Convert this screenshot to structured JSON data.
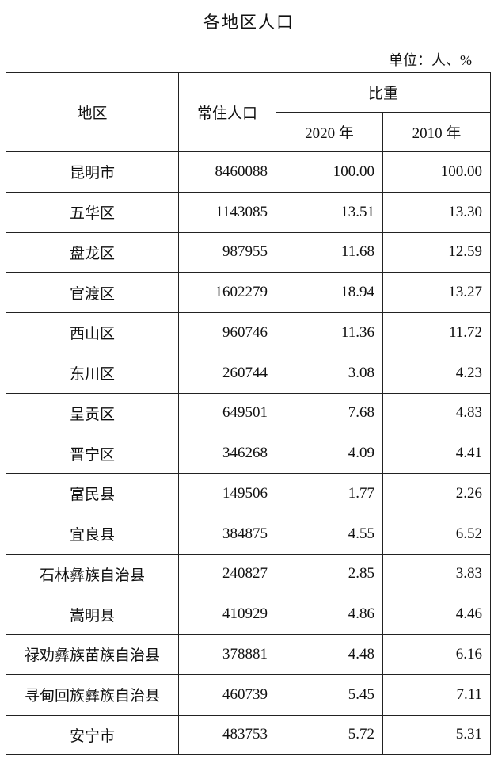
{
  "header": {
    "title": "各地区人口",
    "unit": "单位：人、%"
  },
  "table": {
    "columns": {
      "region": "地区",
      "population": "常住人口",
      "share": "比重",
      "year2020": "2020 年",
      "year2010": "2010 年"
    },
    "rows": [
      [
        "昆明市",
        "8460088",
        "100.00",
        "100.00"
      ],
      [
        "五华区",
        "1143085",
        "13.51",
        "13.30"
      ],
      [
        "盘龙区",
        "987955",
        "11.68",
        "12.59"
      ],
      [
        "官渡区",
        "1602279",
        "18.94",
        "13.27"
      ],
      [
        "西山区",
        "960746",
        "11.36",
        "11.72"
      ],
      [
        "东川区",
        "260744",
        "3.08",
        "4.23"
      ],
      [
        "呈贡区",
        "649501",
        "7.68",
        "4.83"
      ],
      [
        "晋宁区",
        "346268",
        "4.09",
        "4.41"
      ],
      [
        "富民县",
        "149506",
        "1.77",
        "2.26"
      ],
      [
        "宜良县",
        "384875",
        "4.55",
        "6.52"
      ],
      [
        "石林彝族自治县",
        "240827",
        "2.85",
        "3.83"
      ],
      [
        "嵩明县",
        "410929",
        "4.86",
        "4.46"
      ],
      [
        "禄劝彝族苗族自治县",
        "378881",
        "4.48",
        "6.16"
      ],
      [
        "寻甸回族彝族自治县",
        "460739",
        "5.45",
        "7.11"
      ],
      [
        "安宁市",
        "483753",
        "5.72",
        "5.31"
      ]
    ]
  }
}
